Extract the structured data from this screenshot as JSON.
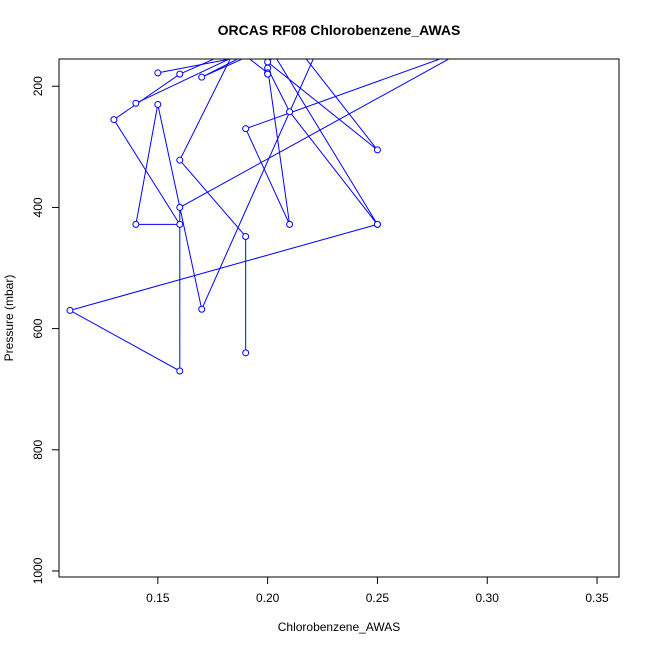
{
  "chart_data": {
    "type": "line",
    "title": "ORCAS RF08 Chlorobenzene_AWAS",
    "xlabel": "Chlorobenzene_AWAS",
    "ylabel": "Pressure (mbar)",
    "xlim": [
      0.105,
      0.36
    ],
    "ylim": [
      1010,
      155
    ],
    "y_reversed": true,
    "x_ticks": [
      0.15,
      0.2,
      0.25,
      0.3,
      0.35
    ],
    "x_tick_labels": [
      "0.15",
      "0.20",
      "0.25",
      "0.30",
      "0.35"
    ],
    "y_ticks": [
      200,
      400,
      600,
      800,
      1000
    ],
    "y_tick_labels": [
      "200",
      "400",
      "600",
      "800",
      "1000"
    ],
    "grid": false,
    "legend": "none",
    "color": "#0000ff",
    "series": [
      {
        "points": [
          {
            "x": 0.19,
            "y": 640
          },
          {
            "x": 0.19,
            "y": 448
          },
          {
            "x": 0.16,
            "y": 322
          },
          {
            "x": 0.185,
            "y": 140
          },
          {
            "x": 0.16,
            "y": 180
          },
          {
            "x": 0.13,
            "y": 255
          },
          {
            "x": 0.16,
            "y": 428
          },
          {
            "x": 0.14,
            "y": 428
          },
          {
            "x": 0.15,
            "y": 230
          },
          {
            "x": 0.17,
            "y": 568
          },
          {
            "x": 0.23,
            "y": 80
          },
          {
            "x": 0.2,
            "y": 160
          },
          {
            "x": 0.25,
            "y": 305
          },
          {
            "x": 0.21,
            "y": 120
          },
          {
            "x": 0.17,
            "y": 185
          },
          {
            "x": 0.2,
            "y": 130
          },
          {
            "x": 0.25,
            "y": 428
          },
          {
            "x": 0.21,
            "y": 242
          },
          {
            "x": 0.2,
            "y": 170
          },
          {
            "x": 0.21,
            "y": 428
          },
          {
            "x": 0.19,
            "y": 270
          },
          {
            "x": 0.29,
            "y": 140
          },
          {
            "x": 0.16,
            "y": 400
          },
          {
            "x": 0.16,
            "y": 670
          },
          {
            "x": 0.11,
            "y": 570
          },
          {
            "x": 0.25,
            "y": 428
          }
        ]
      },
      {
        "points": [
          {
            "x": 0.14,
            "y": 228
          },
          {
            "x": 0.2,
            "y": 125
          }
        ]
      },
      {
        "points": [
          {
            "x": 0.15,
            "y": 178
          },
          {
            "x": 0.19,
            "y": 150
          },
          {
            "x": 0.2,
            "y": 178
          },
          {
            "x": 0.2,
            "y": 180
          }
        ]
      }
    ]
  }
}
